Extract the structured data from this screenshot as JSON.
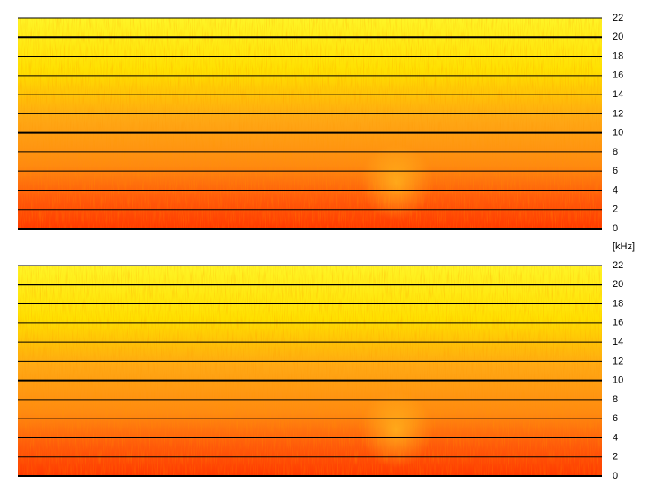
{
  "chart_data": [
    {
      "type": "spectrogram",
      "y_label": "[kHz]",
      "ylim": [
        0,
        22
      ],
      "yticks": [
        0,
        2,
        4,
        6,
        8,
        10,
        12,
        14,
        16,
        18,
        20,
        22
      ],
      "grid": true
    },
    {
      "type": "spectrogram",
      "ylim": [
        0,
        22
      ],
      "yticks": [
        0,
        2,
        4,
        6,
        8,
        10,
        12,
        14,
        16,
        18,
        20,
        22
      ],
      "grid": true
    }
  ]
}
